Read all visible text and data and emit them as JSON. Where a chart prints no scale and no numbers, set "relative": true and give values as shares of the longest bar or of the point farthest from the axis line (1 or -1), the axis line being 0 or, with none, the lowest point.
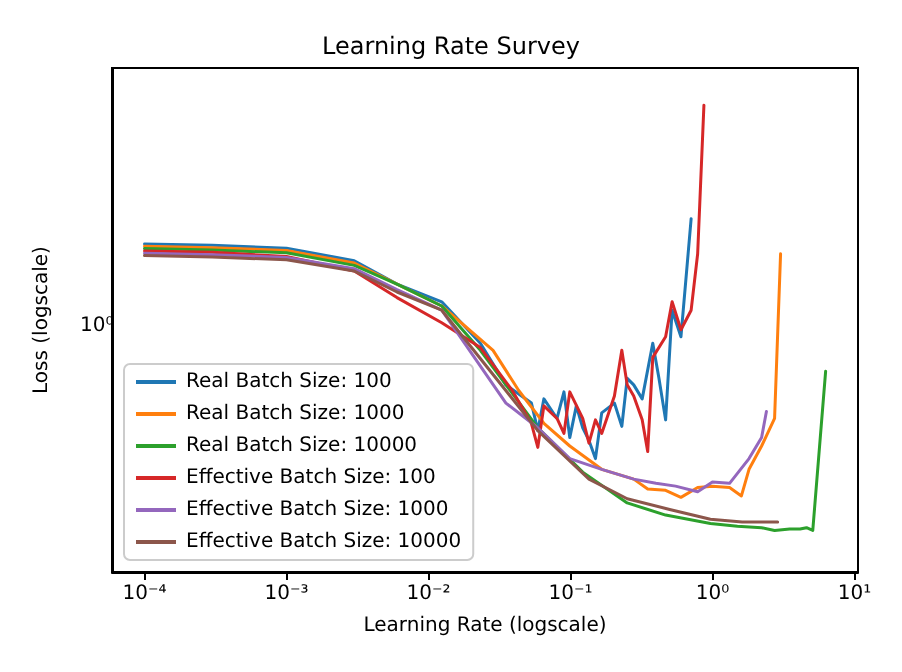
{
  "chart_data": {
    "type": "line",
    "title": "Learning Rate Survey",
    "xlabel": "Learning Rate (logscale)",
    "ylabel": "Loss (logscale)",
    "log": "x",
    "relative": true,
    "grid": false,
    "legend": "bottom left",
    "marker": "none",
    "line_style": "solid",
    "annotations": [
      "10⁰"
    ],
    "xlim": [
      5.9e-05,
      10.6
    ],
    "xticks": [
      {
        "value": 0.0001,
        "label": "10⁻⁴"
      },
      {
        "value": 0.001,
        "label": "10⁻³"
      },
      {
        "value": 0.01,
        "label": "10⁻²"
      },
      {
        "value": 0.1,
        "label": "10⁻¹"
      },
      {
        "value": 1,
        "label": "10⁰"
      },
      {
        "value": 10,
        "label": "10¹"
      }
    ],
    "series": [
      {
        "name": "Real Batch Size: 100",
        "color": "#1f77b4",
        "x": [
          0.0001,
          0.0003,
          0.001,
          0.003,
          0.006,
          0.0124,
          0.0232,
          0.0351,
          0.0531,
          0.0589,
          0.065,
          0.0804,
          0.09,
          0.0989,
          0.11,
          0.122,
          0.135,
          0.15,
          0.166,
          0.204,
          0.23,
          0.251,
          0.279,
          0.32,
          0.38,
          0.42,
          0.468,
          0.52,
          0.6,
          0.708
        ],
        "values": [
          0.703,
          0.7,
          0.694,
          0.667,
          0.617,
          0.579,
          0.49,
          0.401,
          0.362,
          0.303,
          0.371,
          0.329,
          0.386,
          0.288,
          0.356,
          0.309,
          0.282,
          0.243,
          0.341,
          0.362,
          0.312,
          0.415,
          0.401,
          0.371,
          0.49,
          0.415,
          0.326,
          0.561,
          0.504,
          0.757
        ]
      },
      {
        "name": "Real Batch Size: 1000",
        "color": "#ff7f0e",
        "x": [
          0.0001,
          0.0003,
          0.001,
          0.003,
          0.006,
          0.0124,
          0.0285,
          0.0432,
          0.0653,
          0.0989,
          0.166,
          0.279,
          0.35,
          0.468,
          0.6,
          0.787,
          1.0,
          1.32,
          1.6,
          1.81,
          2.22,
          2.74,
          3.02
        ],
        "values": [
          0.698,
          0.695,
          0.689,
          0.662,
          0.617,
          0.57,
          0.475,
          0.389,
          0.318,
          0.27,
          0.22,
          0.199,
          0.178,
          0.175,
          0.16,
          0.181,
          0.184,
          0.181,
          0.163,
          0.22,
          0.27,
          0.329,
          0.682
        ]
      },
      {
        "name": "Real Batch Size: 10000",
        "color": "#2ca02c",
        "x": [
          0.0001,
          0.0003,
          0.001,
          0.003,
          0.006,
          0.0124,
          0.0232,
          0.0589,
          0.122,
          0.251,
          0.468,
          0.968,
          1.5,
          2.22,
          2.74,
          3.5,
          4.14,
          4.6,
          5.09,
          6.27
        ],
        "values": [
          0.693,
          0.69,
          0.684,
          0.657,
          0.617,
          0.57,
          0.475,
          0.309,
          0.214,
          0.148,
          0.122,
          0.104,
          0.098,
          0.095,
          0.089,
          0.092,
          0.092,
          0.095,
          0.089,
          0.43
        ]
      },
      {
        "name": "Effective Batch Size: 100",
        "color": "#d62728",
        "x": [
          0.0001,
          0.0003,
          0.001,
          0.003,
          0.006,
          0.0124,
          0.0232,
          0.0389,
          0.0531,
          0.0589,
          0.065,
          0.0804,
          0.09,
          0.0989,
          0.122,
          0.135,
          0.15,
          0.166,
          0.204,
          0.23,
          0.251,
          0.279,
          0.32,
          0.35,
          0.38,
          0.468,
          0.52,
          0.6,
          0.708,
          0.787,
          0.871
        ],
        "values": [
          0.688,
          0.685,
          0.676,
          0.645,
          0.588,
          0.534,
          0.481,
          0.389,
          0.318,
          0.267,
          0.356,
          0.329,
          0.297,
          0.386,
          0.329,
          0.276,
          0.326,
          0.297,
          0.377,
          0.475,
          0.401,
          0.377,
          0.326,
          0.258,
          0.46,
          0.504,
          0.579,
          0.519,
          0.561,
          0.682,
          1
        ]
      },
      {
        "name": "Effective Batch Size: 1000",
        "color": "#9467bd",
        "x": [
          0.0001,
          0.0003,
          0.001,
          0.003,
          0.006,
          0.0124,
          0.0351,
          0.0589,
          0.0989,
          0.166,
          0.279,
          0.4,
          0.55,
          0.787,
          1.0,
          1.32,
          1.81,
          2.22,
          2.4
        ],
        "values": [
          0.683,
          0.68,
          0.674,
          0.65,
          0.605,
          0.561,
          0.362,
          0.309,
          0.243,
          0.22,
          0.199,
          0.19,
          0.184,
          0.172,
          0.193,
          0.19,
          0.243,
          0.288,
          0.344
        ]
      },
      {
        "name": "Effective Batch Size: 10000",
        "color": "#8c564b",
        "x": [
          0.0001,
          0.0003,
          0.001,
          0.003,
          0.006,
          0.0124,
          0.0589,
          0.135,
          0.251,
          0.5,
          0.968,
          1.62,
          2.88
        ],
        "values": [
          0.678,
          0.675,
          0.669,
          0.645,
          0.6,
          0.561,
          0.303,
          0.199,
          0.157,
          0.134,
          0.113,
          0.107,
          0.107
        ]
      }
    ]
  }
}
